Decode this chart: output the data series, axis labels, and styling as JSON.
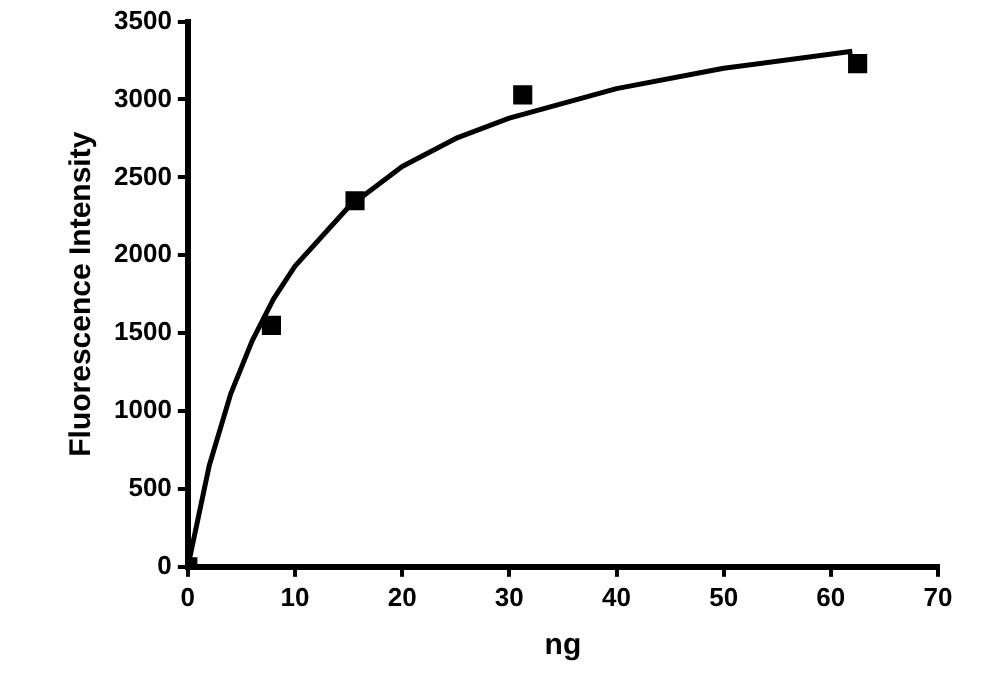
{
  "chart_data": {
    "type": "scatter",
    "xlabel": "ng",
    "ylabel": "Fluorescence Intensity",
    "xlim": [
      0,
      70
    ],
    "xticks": [
      0,
      10,
      20,
      30,
      40,
      50,
      60,
      70
    ],
    "ylim": [
      0,
      3500
    ],
    "yticks": [
      0,
      500,
      1000,
      1500,
      2000,
      2500,
      3000,
      3500
    ],
    "grid": false,
    "legend": false,
    "series": [
      {
        "type": "scatter",
        "color": "#000000",
        "marker": "square",
        "x": [
          0,
          7.8,
          15.6,
          31.25,
          62.5
        ],
        "values": [
          0,
          1550,
          2350,
          3030,
          3230
        ]
      },
      {
        "type": "line",
        "color": "#000000",
        "marker": "none",
        "x": [
          0,
          2,
          4,
          6,
          8,
          10,
          15,
          20,
          25,
          30,
          40,
          50,
          62
        ],
        "values": [
          0,
          650,
          1110,
          1450,
          1720,
          1930,
          2310,
          2570,
          2750,
          2880,
          3070,
          3200,
          3310
        ]
      }
    ]
  }
}
